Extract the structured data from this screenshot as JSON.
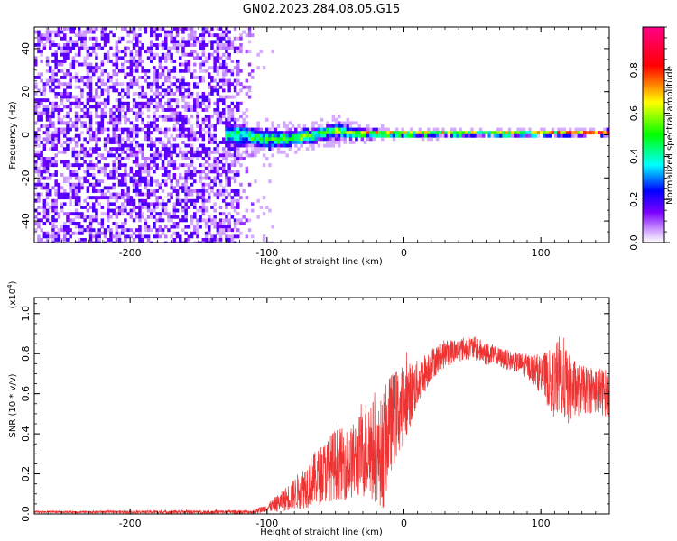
{
  "title": "GN02.2023.284.08.05.G15",
  "chart_data": [
    {
      "type": "heatmap",
      "name": "spectrogram",
      "xlabel": "Height of straight line (km)",
      "ylabel": "Frequency (Hz)",
      "xlim": [
        -270,
        150
      ],
      "ylim": [
        -50,
        50
      ],
      "xticks": [
        -200,
        -100,
        0,
        100
      ],
      "yticks": [
        -40,
        -20,
        0,
        20,
        40
      ],
      "colorbar": {
        "label": "Normalized spectral amplitude",
        "range": [
          0,
          1
        ],
        "ticks": [
          0.0,
          0.2,
          0.4,
          0.6,
          0.8
        ],
        "tick_labels": [
          "0.0",
          "0.2",
          "0.4",
          "0.6",
          "0.8"
        ],
        "colormap": [
          "#ffffff",
          "#8a2be2",
          "#0000ff",
          "#00ffff",
          "#00ff00",
          "#ffff00",
          "#ff0000",
          "#ff00ff"
        ]
      },
      "noise_region_x": [
        -270,
        -120
      ],
      "line_points": [
        {
          "x": -125,
          "f": 0.0,
          "spread": 6,
          "amp": 0.45
        },
        {
          "x": -110,
          "f": -1.0,
          "spread": 5,
          "amp": 0.5
        },
        {
          "x": -95,
          "f": -2.0,
          "spread": 5,
          "amp": 0.55
        },
        {
          "x": -80,
          "f": -1.5,
          "spread": 4,
          "amp": 0.55
        },
        {
          "x": -65,
          "f": 0.0,
          "spread": 4,
          "amp": 0.6
        },
        {
          "x": -50,
          "f": 2.0,
          "spread": 4,
          "amp": 0.6
        },
        {
          "x": -35,
          "f": 0.5,
          "spread": 3,
          "amp": 0.65
        },
        {
          "x": -20,
          "f": 0.5,
          "spread": 2,
          "amp": 0.8
        },
        {
          "x": 0,
          "f": 0.5,
          "spread": 1.5,
          "amp": 0.9
        },
        {
          "x": 50,
          "f": 0.5,
          "spread": 1.2,
          "amp": 0.95
        },
        {
          "x": 100,
          "f": 0.5,
          "spread": 1.2,
          "amp": 0.95
        },
        {
          "x": 150,
          "f": 1.0,
          "spread": 1.5,
          "amp": 0.9
        }
      ]
    },
    {
      "type": "line",
      "name": "snr",
      "xlabel": "Height of straight line (km)",
      "ylabel": "SNR (10 * v/v)",
      "y_multiplier_label": "(x10",
      "y_multiplier_exp": "4",
      "y_multiplier_close": ")",
      "xlim": [
        -270,
        150
      ],
      "ylim": [
        0,
        1.08
      ],
      "xticks": [
        -200,
        -100,
        0,
        100
      ],
      "yticks": [
        0.0,
        0.2,
        0.4,
        0.6,
        0.8,
        1.0
      ],
      "ytick_labels": [
        "0.0",
        "0.2",
        "0.4",
        "0.6",
        "0.8",
        "1.0"
      ],
      "color": "#ee3333",
      "envelope": {
        "x": [
          -270,
          -110,
          -100,
          -90,
          -80,
          -70,
          -60,
          -50,
          -40,
          -30,
          -25,
          -20,
          -15,
          -10,
          0,
          10,
          20,
          30,
          40,
          50,
          60,
          70,
          80,
          90,
          100,
          110,
          115,
          120,
          130,
          140,
          150
        ],
        "mean": [
          0.01,
          0.01,
          0.03,
          0.06,
          0.1,
          0.15,
          0.2,
          0.25,
          0.25,
          0.3,
          0.35,
          0.28,
          0.32,
          0.45,
          0.55,
          0.65,
          0.75,
          0.8,
          0.82,
          0.83,
          0.8,
          0.78,
          0.76,
          0.74,
          0.7,
          0.65,
          0.7,
          0.62,
          0.62,
          0.62,
          0.6
        ],
        "noise": [
          0.005,
          0.01,
          0.02,
          0.05,
          0.08,
          0.12,
          0.15,
          0.18,
          0.18,
          0.22,
          0.3,
          0.22,
          0.3,
          0.25,
          0.2,
          0.12,
          0.08,
          0.07,
          0.06,
          0.06,
          0.06,
          0.05,
          0.05,
          0.06,
          0.1,
          0.18,
          0.22,
          0.18,
          0.12,
          0.12,
          0.12
        ]
      }
    }
  ]
}
